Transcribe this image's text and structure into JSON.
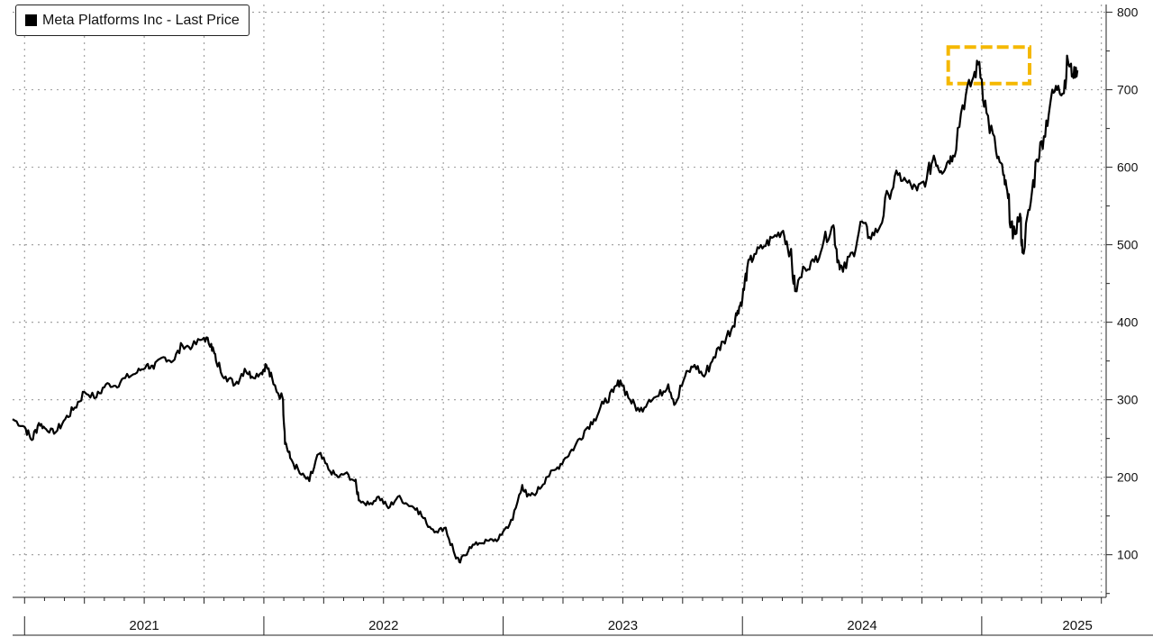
{
  "chart_data": {
    "type": "line",
    "title": "",
    "legend": {
      "label": "Meta Platforms Inc - Last Price",
      "color": "#000000",
      "placement": "top-left"
    },
    "xlabel": "",
    "ylabel": "",
    "ylim": [
      45,
      810
    ],
    "y_ticks": [
      100,
      200,
      300,
      400,
      500,
      600,
      700,
      800
    ],
    "y_axis_side": "right",
    "x_years": [
      "2021",
      "2022",
      "2023",
      "2024",
      "2025"
    ],
    "xlim": [
      2020.95,
      2025.52
    ],
    "grid": true,
    "highlight_box": {
      "x_range": [
        2024.86,
        2025.2
      ],
      "y_range": [
        708,
        755
      ],
      "color": "#F5B800",
      "style": "dashed"
    },
    "series": [
      {
        "name": "Meta Platforms Inc - Last Price",
        "color": "#000000",
        "points": [
          [
            2020.95,
            275
          ],
          [
            2021.0,
            265
          ],
          [
            2021.03,
            248
          ],
          [
            2021.06,
            270
          ],
          [
            2021.09,
            262
          ],
          [
            2021.13,
            258
          ],
          [
            2021.17,
            275
          ],
          [
            2021.21,
            290
          ],
          [
            2021.25,
            310
          ],
          [
            2021.3,
            303
          ],
          [
            2021.34,
            320
          ],
          [
            2021.38,
            318
          ],
          [
            2021.42,
            328
          ],
          [
            2021.47,
            335
          ],
          [
            2021.51,
            345
          ],
          [
            2021.54,
            340
          ],
          [
            2021.58,
            355
          ],
          [
            2021.62,
            350
          ],
          [
            2021.66,
            370
          ],
          [
            2021.7,
            368
          ],
          [
            2021.75,
            380
          ],
          [
            2021.78,
            372
          ],
          [
            2021.8,
            350
          ],
          [
            2021.84,
            330
          ],
          [
            2021.88,
            320
          ],
          [
            2021.92,
            340
          ],
          [
            2021.95,
            330
          ],
          [
            2021.99,
            335
          ],
          [
            2022.01,
            345
          ],
          [
            2022.04,
            320
          ],
          [
            2022.08,
            300
          ],
          [
            2022.09,
            245
          ],
          [
            2022.11,
            225
          ],
          [
            2022.15,
            205
          ],
          [
            2022.19,
            195
          ],
          [
            2022.23,
            230
          ],
          [
            2022.27,
            210
          ],
          [
            2022.31,
            200
          ],
          [
            2022.34,
            205
          ],
          [
            2022.38,
            195
          ],
          [
            2022.4,
            170
          ],
          [
            2022.44,
            165
          ],
          [
            2022.48,
            175
          ],
          [
            2022.52,
            160
          ],
          [
            2022.56,
            175
          ],
          [
            2022.6,
            165
          ],
          [
            2022.64,
            160
          ],
          [
            2022.68,
            140
          ],
          [
            2022.72,
            130
          ],
          [
            2022.76,
            135
          ],
          [
            2022.8,
            98
          ],
          [
            2022.82,
            90
          ],
          [
            2022.86,
            110
          ],
          [
            2022.9,
            115
          ],
          [
            2022.94,
            118
          ],
          [
            2022.98,
            120
          ],
          [
            2023.0,
            130
          ],
          [
            2023.04,
            145
          ],
          [
            2023.08,
            190
          ],
          [
            2023.1,
            175
          ],
          [
            2023.14,
            180
          ],
          [
            2023.18,
            200
          ],
          [
            2023.22,
            210
          ],
          [
            2023.26,
            225
          ],
          [
            2023.3,
            240
          ],
          [
            2023.34,
            260
          ],
          [
            2023.38,
            275
          ],
          [
            2023.42,
            295
          ],
          [
            2023.46,
            310
          ],
          [
            2023.49,
            325
          ],
          [
            2023.53,
            300
          ],
          [
            2023.57,
            285
          ],
          [
            2023.61,
            300
          ],
          [
            2023.65,
            305
          ],
          [
            2023.69,
            320
          ],
          [
            2023.72,
            295
          ],
          [
            2023.76,
            330
          ],
          [
            2023.8,
            345
          ],
          [
            2023.84,
            330
          ],
          [
            2023.88,
            355
          ],
          [
            2023.92,
            375
          ],
          [
            2023.96,
            395
          ],
          [
            2023.98,
            415
          ],
          [
            2024.0,
            430
          ],
          [
            2024.02,
            470
          ],
          [
            2024.05,
            488
          ],
          [
            2024.09,
            498
          ],
          [
            2024.13,
            510
          ],
          [
            2024.17,
            518
          ],
          [
            2024.2,
            490
          ],
          [
            2024.22,
            440
          ],
          [
            2024.26,
            470
          ],
          [
            2024.3,
            478
          ],
          [
            2024.34,
            505
          ],
          [
            2024.38,
            525
          ],
          [
            2024.4,
            480
          ],
          [
            2024.42,
            465
          ],
          [
            2024.46,
            490
          ],
          [
            2024.5,
            530
          ],
          [
            2024.53,
            510
          ],
          [
            2024.57,
            520
          ],
          [
            2024.61,
            565
          ],
          [
            2024.65,
            590
          ],
          [
            2024.69,
            580
          ],
          [
            2024.73,
            570
          ],
          [
            2024.77,
            585
          ],
          [
            2024.8,
            615
          ],
          [
            2024.83,
            595
          ],
          [
            2024.86,
            608
          ],
          [
            2024.88,
            615
          ],
          [
            2024.92,
            680
          ],
          [
            2024.96,
            712
          ],
          [
            2024.99,
            736
          ],
          [
            2025.02,
            670
          ],
          [
            2025.06,
            620
          ],
          [
            2025.09,
            590
          ],
          [
            2025.11,
            560
          ],
          [
            2025.13,
            508
          ],
          [
            2025.16,
            540
          ],
          [
            2025.17,
            490
          ],
          [
            2025.2,
            545
          ],
          [
            2025.23,
            610
          ],
          [
            2025.26,
            640
          ],
          [
            2025.29,
            690
          ],
          [
            2025.32,
            705
          ],
          [
            2025.34,
            695
          ],
          [
            2025.36,
            738
          ],
          [
            2025.38,
            720
          ],
          [
            2025.4,
            725
          ]
        ]
      }
    ]
  }
}
